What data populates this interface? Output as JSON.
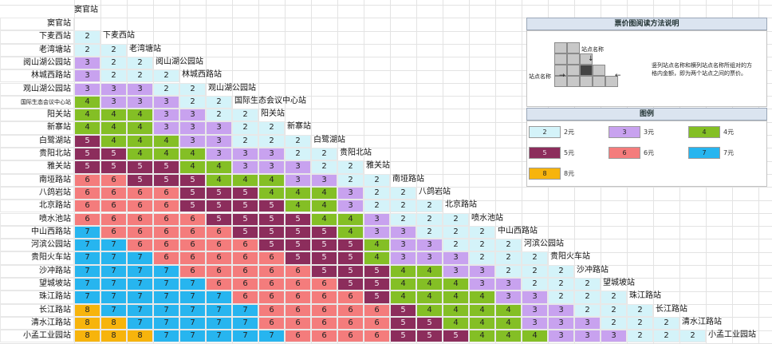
{
  "stations": [
    "窦官站",
    "下麦西站",
    "老湾塘站",
    "阅山湖公园站",
    "林城西路站",
    "观山湖公园站",
    "国际生态会议中心站",
    "阳关站",
    "新寨站",
    "白鹭湖站",
    "贵阳北站",
    "雅关站",
    "南垭路站",
    "八鸽岩站",
    "北京路站",
    "喷水池站",
    "中山西路站",
    "河滨公园站",
    "贵阳火车站",
    "沙冲路站",
    "望城坡站",
    "珠江路站",
    "长江路站",
    "清水江路站",
    "小孟工业园站"
  ],
  "fares": [
    [
      2
    ],
    [
      2,
      2
    ],
    [
      3,
      2,
      2
    ],
    [
      3,
      2,
      2,
      2
    ],
    [
      3,
      3,
      3,
      2,
      2
    ],
    [
      4,
      3,
      3,
      3,
      2,
      2
    ],
    [
      4,
      4,
      4,
      3,
      3,
      2,
      2
    ],
    [
      4,
      4,
      4,
      3,
      3,
      3,
      2,
      2
    ],
    [
      5,
      4,
      4,
      4,
      3,
      3,
      2,
      2,
      2
    ],
    [
      5,
      5,
      4,
      4,
      4,
      3,
      3,
      3,
      2,
      2
    ],
    [
      5,
      5,
      5,
      5,
      4,
      4,
      3,
      3,
      3,
      2,
      2
    ],
    [
      6,
      6,
      5,
      5,
      5,
      4,
      4,
      4,
      3,
      3,
      2,
      2
    ],
    [
      6,
      6,
      6,
      6,
      5,
      5,
      5,
      4,
      4,
      4,
      3,
      2,
      2
    ],
    [
      6,
      6,
      6,
      6,
      5,
      5,
      5,
      5,
      4,
      4,
      3,
      2,
      2,
      2
    ],
    [
      6,
      6,
      6,
      6,
      6,
      5,
      5,
      5,
      5,
      4,
      4,
      3,
      2,
      2,
      2
    ],
    [
      7,
      6,
      6,
      6,
      6,
      6,
      5,
      5,
      5,
      5,
      4,
      3,
      3,
      2,
      2,
      2
    ],
    [
      7,
      7,
      6,
      6,
      6,
      6,
      6,
      5,
      5,
      5,
      5,
      4,
      3,
      3,
      2,
      2,
      2
    ],
    [
      7,
      7,
      7,
      6,
      6,
      6,
      6,
      6,
      5,
      5,
      5,
      4,
      3,
      3,
      3,
      2,
      2,
      2
    ],
    [
      7,
      7,
      7,
      7,
      6,
      6,
      6,
      6,
      6,
      5,
      5,
      5,
      4,
      4,
      3,
      3,
      2,
      2,
      2
    ],
    [
      7,
      7,
      7,
      7,
      7,
      6,
      6,
      6,
      6,
      6,
      5,
      5,
      4,
      4,
      4,
      3,
      3,
      2,
      2,
      2
    ],
    [
      7,
      7,
      7,
      7,
      7,
      7,
      6,
      6,
      6,
      6,
      6,
      5,
      4,
      4,
      4,
      4,
      3,
      3,
      2,
      2,
      2
    ],
    [
      8,
      7,
      7,
      7,
      7,
      7,
      7,
      6,
      6,
      6,
      6,
      6,
      5,
      4,
      4,
      4,
      4,
      3,
      3,
      2,
      2,
      2
    ],
    [
      8,
      8,
      7,
      7,
      7,
      7,
      7,
      6,
      6,
      6,
      6,
      6,
      5,
      5,
      4,
      4,
      4,
      3,
      3,
      3,
      2,
      2,
      2
    ],
    [
      8,
      8,
      8,
      7,
      7,
      7,
      7,
      7,
      6,
      6,
      6,
      6,
      5,
      5,
      5,
      4,
      4,
      4,
      3,
      3,
      3,
      2,
      2,
      2
    ]
  ],
  "colors": {
    "2": "#d4f3f9",
    "3": "#c8a2ef",
    "4": "#84bf25",
    "5": "#8c2d5c",
    "6": "#f47c7c",
    "7": "#27b5ef",
    "8": "#f7b40c"
  },
  "legend": {
    "howto_title": "票价图阅读方法说明",
    "annot_top": "站点名称",
    "annot_left": "站点名称",
    "annot_right": "竖列站点名称和横列站点名称所组对的方格内金额，即为两个站点之间的票价。",
    "legend_title": "图例",
    "items": [
      {
        "value": "2",
        "label": "2元"
      },
      {
        "value": "3",
        "label": "3元"
      },
      {
        "value": "4",
        "label": "4元"
      },
      {
        "value": "5",
        "label": "5元"
      },
      {
        "value": "6",
        "label": "6元"
      },
      {
        "value": "7",
        "label": "7元"
      },
      {
        "value": "8",
        "label": "8元"
      }
    ]
  }
}
